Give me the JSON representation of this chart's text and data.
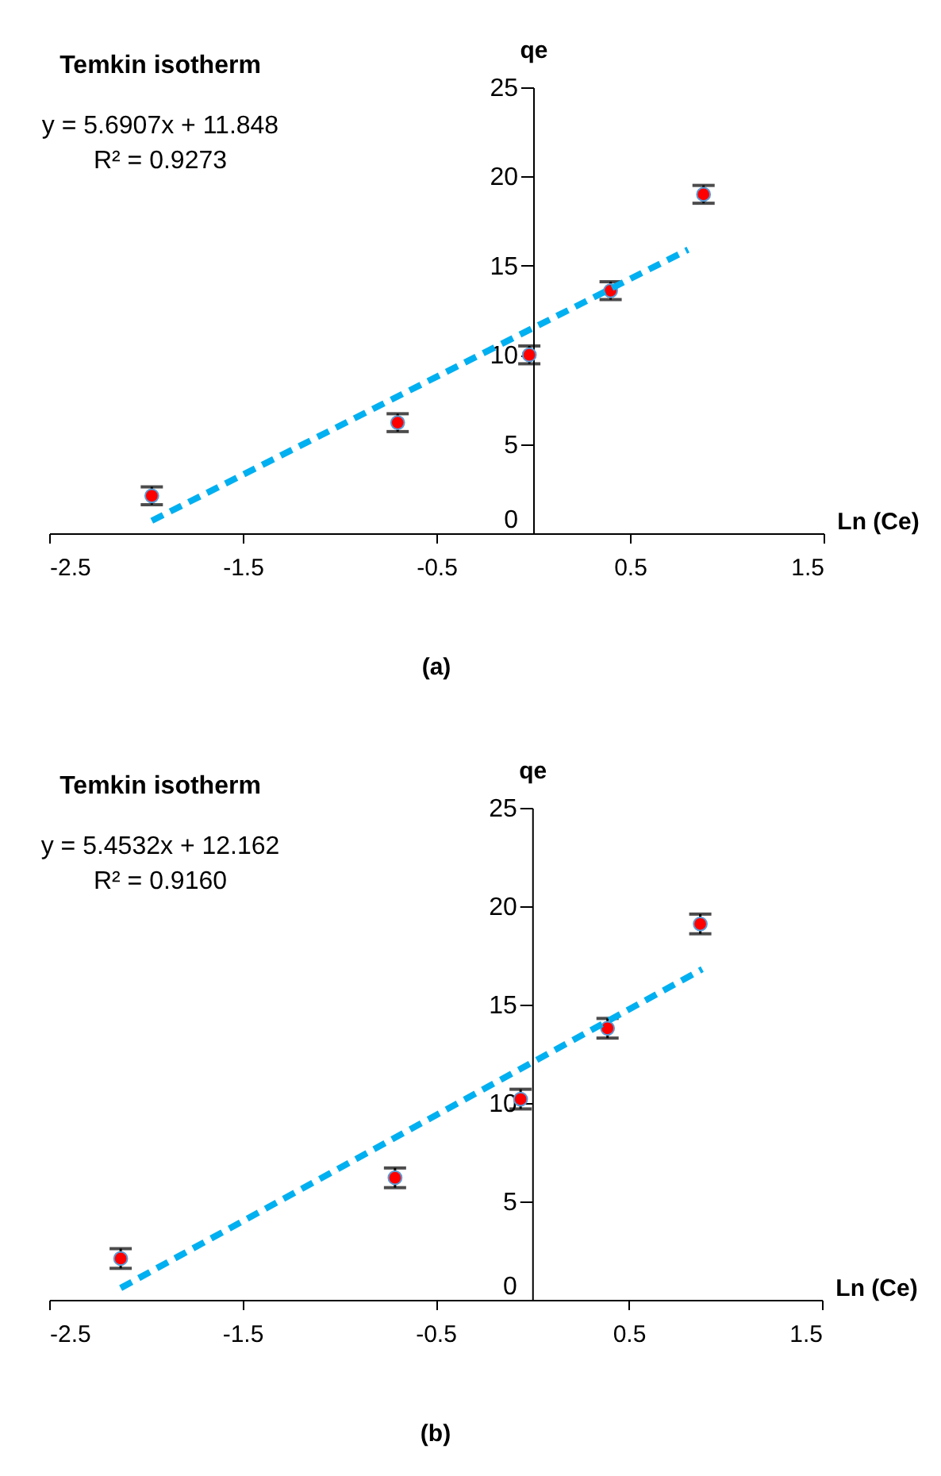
{
  "chart_data": [
    {
      "type": "scatter",
      "title": "(a)",
      "xlabel": "Ln (Ce)",
      "ylabel": "qe",
      "annotations": [
        "Temkin isotherm",
        "y = 5.6907x + 11.848",
        "R² = 0.9273"
      ],
      "xlim": [
        -2.5,
        1.5
      ],
      "xticks": [
        -2.5,
        -1.5,
        -0.5,
        0.5,
        1.5
      ],
      "ylim": [
        0,
        25
      ],
      "yticks": [
        0,
        5,
        10,
        15,
        20,
        25
      ],
      "marker": "circle",
      "series": [
        {
          "type": "scatter",
          "color": "#ff0000",
          "x": [
            -1.97,
            -0.7,
            -0.02,
            0.4,
            0.88
          ],
          "values": [
            2.1,
            6.2,
            10.0,
            13.6,
            19.0
          ],
          "errors": [
            0.5,
            0.5,
            0.5,
            0.5,
            0.5
          ]
        },
        {
          "type": "line",
          "color": "#00b0f0",
          "line_style": "dashed",
          "marker": "none",
          "x": [
            -1.97,
            0.8
          ],
          "values": [
            0.7,
            15.9
          ]
        }
      ]
    },
    {
      "type": "scatter",
      "title": "(b)",
      "xlabel": "Ln (Ce)",
      "ylabel": "qe",
      "annotations": [
        "Temkin isotherm",
        "y = 5.4532x + 12.162",
        "R² = 0.9160"
      ],
      "xlim": [
        -2.5,
        1.5
      ],
      "xticks": [
        -2.5,
        -1.5,
        -0.5,
        0.5,
        1.5
      ],
      "ylim": [
        0,
        25
      ],
      "yticks": [
        0,
        5,
        10,
        15,
        20,
        25
      ],
      "marker": "circle",
      "series": [
        {
          "type": "scatter",
          "color": "#ff0000",
          "x": [
            -2.13,
            -0.71,
            -0.06,
            0.39,
            0.87
          ],
          "values": [
            2.1,
            6.2,
            10.2,
            13.8,
            19.1
          ],
          "errors": [
            0.5,
            0.5,
            0.5,
            0.5,
            0.5
          ]
        },
        {
          "type": "line",
          "color": "#00b0f0",
          "line_style": "dashed",
          "marker": "none",
          "x": [
            -2.13,
            0.88
          ],
          "values": [
            0.6,
            16.8
          ]
        }
      ]
    }
  ]
}
